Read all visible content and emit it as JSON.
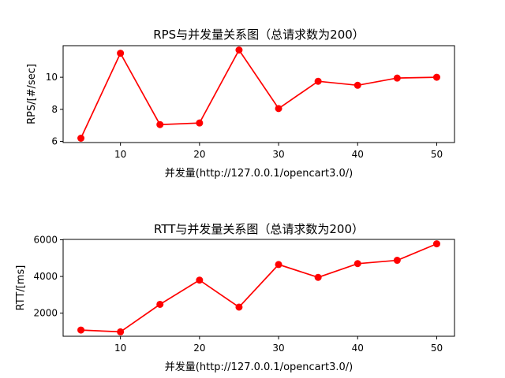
{
  "chart_data": [
    {
      "type": "line",
      "title": "RPS与并发量关系图（总请求数为200）",
      "xlabel": "并发量(http://127.0.0.1/opencart3.0/)",
      "ylabel": "RPS/[#/sec]",
      "x": [
        5,
        10,
        15,
        20,
        25,
        30,
        35,
        40,
        45,
        50
      ],
      "series": [
        {
          "values": [
            6.2,
            11.5,
            7.05,
            7.15,
            11.7,
            8.05,
            9.75,
            9.5,
            9.95,
            10.0
          ],
          "color": "#ff0000",
          "marker": "circle"
        }
      ],
      "xlim": [
        2.75,
        52.25
      ],
      "ylim": [
        5.93,
        11.97
      ],
      "xticks": [
        10,
        20,
        30,
        40,
        50
      ],
      "yticks": [
        6,
        8,
        10
      ],
      "grid": false
    },
    {
      "type": "line",
      "title": "RTT与并发量关系图（总请求数为200）",
      "xlabel": "并发量(http://127.0.0.1/opencart3.0/)",
      "ylabel": "RTT/[ms]",
      "x": [
        5,
        10,
        15,
        20,
        25,
        30,
        35,
        40,
        45,
        50
      ],
      "series": [
        {
          "values": [
            1080,
            980,
            2480,
            3800,
            2330,
            4650,
            3950,
            4700,
            4880,
            5780
          ],
          "color": "#ff0000",
          "marker": "circle"
        }
      ],
      "xlim": [
        2.75,
        52.25
      ],
      "ylim": [
        740,
        6020
      ],
      "xticks": [
        10,
        20,
        30,
        40,
        50
      ],
      "yticks": [
        2000,
        4000,
        6000
      ],
      "grid": false
    }
  ]
}
